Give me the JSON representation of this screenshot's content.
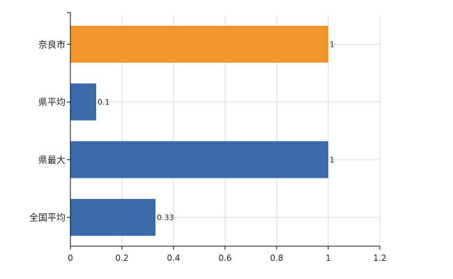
{
  "chart_data": {
    "type": "bar",
    "orientation": "horizontal",
    "categories": [
      "奈良市",
      "県平均",
      "県最大",
      "全国平均"
    ],
    "values": [
      1,
      0.1,
      1,
      0.33
    ],
    "value_labels": [
      "1",
      "0.1",
      "1",
      "0.33"
    ],
    "bar_colors": [
      "#f0962f",
      "#3c6aa8",
      "#3c6aa8",
      "#3c6aa8"
    ],
    "xlim": [
      0,
      1.2
    ],
    "x_ticks": [
      0,
      0.2,
      0.4,
      0.6,
      0.8,
      1,
      1.2
    ],
    "x_tick_labels": [
      "0",
      "0.2",
      "0.4",
      "0.6",
      "0.8",
      "1",
      "1.2"
    ],
    "grid": true,
    "title": "",
    "xlabel": "",
    "ylabel": ""
  },
  "colors": {
    "highlight": "#f0962f",
    "default": "#3c6aa8",
    "grid": "#d9d9d9",
    "axis": "#000000"
  }
}
